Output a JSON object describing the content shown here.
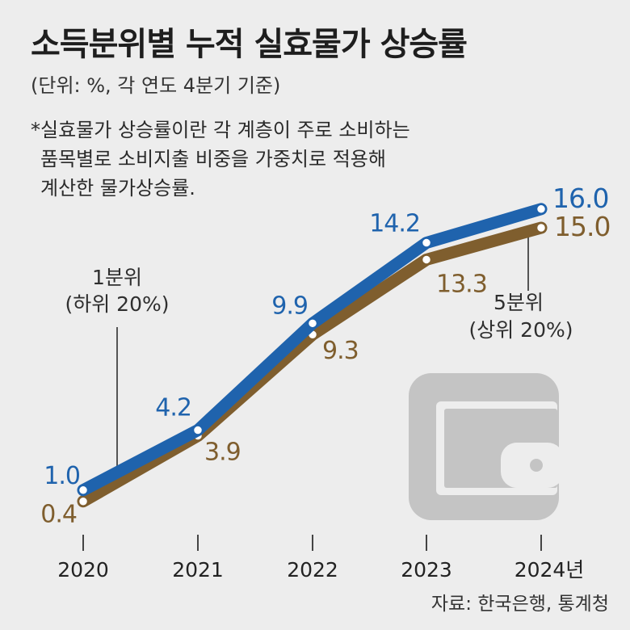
{
  "title": "소득분위별 누적 실효물가 상승률",
  "unit": "(단위: %, 각 연도 4분기 기준)",
  "note": [
    "*실효물가 상승률이란 각 계층이 주로 소비하는",
    "품목별로 소비지출 비중을 가중치로 적용해",
    "계산한 물가상승률."
  ],
  "source": "자료: 한국은행, 통계청",
  "annotations": {
    "q1": [
      "1분위",
      "(하위 20%)"
    ],
    "q5": [
      "5분위",
      "(상위 20%)"
    ]
  },
  "chart_data": {
    "type": "line",
    "categories": [
      "2020",
      "2021",
      "2022",
      "2023",
      "2024년"
    ],
    "series": [
      {
        "name": "1분위",
        "values": [
          1.0,
          4.2,
          9.9,
          14.2,
          16.0
        ],
        "labels": [
          "1.0",
          "4.2",
          "9.9",
          "14.2",
          "16.0"
        ],
        "color": "#1f63ad"
      },
      {
        "name": "5분위",
        "values": [
          0.4,
          3.9,
          9.3,
          13.3,
          15.0
        ],
        "labels": [
          "0.4",
          "3.9",
          "9.3",
          "13.3",
          "15.0"
        ],
        "color": "#7f5e2e"
      }
    ]
  },
  "icon": "wallet-icon"
}
